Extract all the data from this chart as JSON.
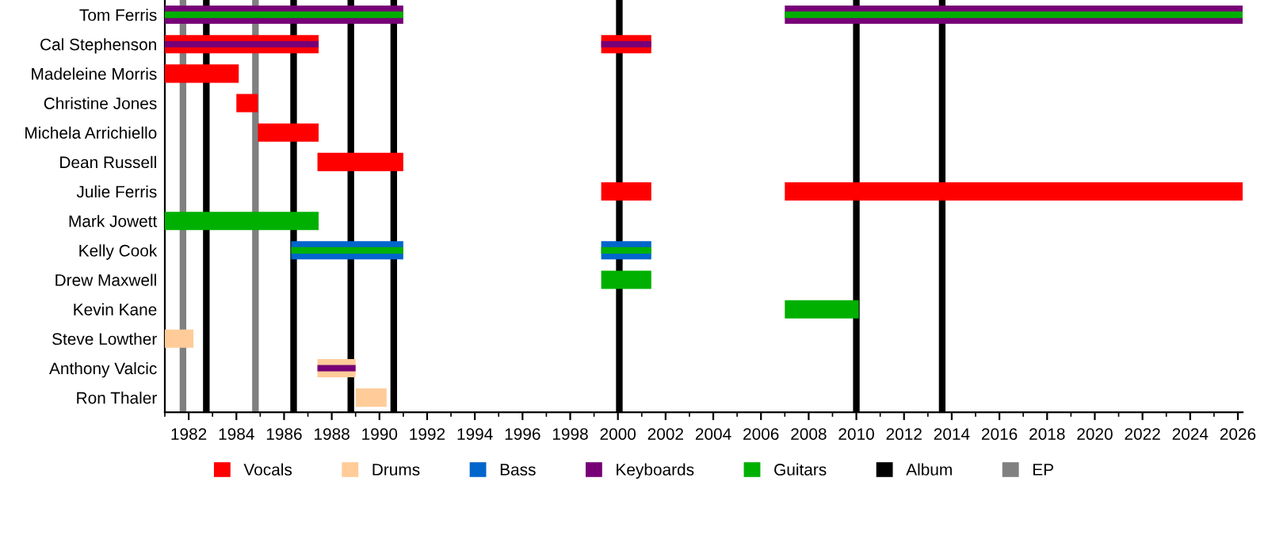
{
  "chart_data": {
    "type": "bar",
    "orientation": "horizontal",
    "categories": [
      "Tom Ferris",
      "Cal Stephenson",
      "Madeleine Morris",
      "Christine Jones",
      "Michela Arrichiello",
      "Dean Russell",
      "Julie Ferris",
      "Mark Jowett",
      "Kelly Cook",
      "Drew Maxwell",
      "Kevin Kane",
      "Steve Lowther",
      "Anthony Valcic",
      "Ron Thaler"
    ],
    "series": [
      {
        "name": "Vocals",
        "color": "#ff0000",
        "base": [
          null,
          1981,
          1981,
          1984.0,
          1984.9,
          1987.4,
          1999.3,
          null,
          null,
          null,
          null,
          null,
          null,
          null
        ],
        "values": [
          null,
          6.45,
          3.1,
          0.9,
          2.55,
          3.6,
          2.1,
          null,
          null,
          null,
          null,
          null,
          null,
          null
        ]
      },
      {
        "color": "#ff0000",
        "base": [
          null,
          1999.3,
          null,
          null,
          null,
          null,
          2007,
          null,
          null,
          null,
          null,
          null,
          null,
          null
        ],
        "values": [
          null,
          2.1,
          null,
          null,
          null,
          null,
          19.2,
          null,
          null,
          null,
          null,
          null,
          null,
          null
        ]
      },
      {
        "name": "Drums",
        "color": "#ffcc99",
        "base": [
          null,
          null,
          null,
          null,
          null,
          null,
          null,
          null,
          null,
          null,
          null,
          1981,
          1987.4,
          1989.0
        ],
        "values": [
          null,
          null,
          null,
          null,
          null,
          null,
          null,
          null,
          null,
          null,
          null,
          1.2,
          1.6,
          1.3
        ]
      },
      {
        "name": "Bass",
        "color": "#0066cc",
        "base": [
          null,
          null,
          null,
          null,
          null,
          null,
          null,
          null,
          1986.3,
          null,
          null,
          null,
          null,
          null
        ],
        "values": [
          null,
          null,
          null,
          null,
          null,
          null,
          null,
          null,
          4.7,
          null,
          null,
          null,
          null,
          null
        ]
      },
      {
        "color": "#0066cc",
        "base": [
          null,
          null,
          null,
          null,
          null,
          null,
          null,
          null,
          1999.3,
          null,
          null,
          null,
          null,
          null
        ],
        "values": [
          null,
          null,
          null,
          null,
          null,
          null,
          null,
          null,
          2.1,
          null,
          null,
          null,
          null,
          null
        ]
      },
      {
        "name": "Keyboards",
        "color": "#770077",
        "base": [
          1981,
          1981,
          null,
          null,
          null,
          null,
          null,
          null,
          null,
          null,
          null,
          null,
          1987.4,
          null
        ],
        "values": [
          10.0,
          6.45,
          null,
          null,
          null,
          null,
          null,
          null,
          null,
          null,
          null,
          null,
          1.6,
          null
        ]
      },
      {
        "color": "#770077",
        "base": [
          2007,
          1999.3,
          null,
          null,
          null,
          null,
          null,
          null,
          null,
          null,
          null,
          null,
          null,
          null
        ],
        "values": [
          19.2,
          2.1,
          null,
          null,
          null,
          null,
          null,
          null,
          null,
          null,
          null,
          null,
          null,
          null
        ]
      },
      {
        "name": "Guitars",
        "color": "#00b000",
        "base": [
          1981,
          null,
          null,
          null,
          null,
          null,
          null,
          1981,
          1986.3,
          1999.3,
          2007,
          null,
          null,
          null
        ],
        "values": [
          10.0,
          null,
          null,
          null,
          null,
          null,
          null,
          6.45,
          4.7,
          2.1,
          3.1,
          null,
          null,
          null
        ]
      },
      {
        "color": "#00b000",
        "base": [
          2007,
          null,
          null,
          null,
          null,
          null,
          null,
          null,
          1999.3,
          null,
          null,
          null,
          null,
          null
        ],
        "values": [
          19.2,
          null,
          null,
          null,
          null,
          null,
          null,
          null,
          2.1,
          null,
          null,
          null,
          null,
          null
        ]
      }
    ],
    "ref_lines": [
      {
        "axis": "x",
        "value": 1982.74,
        "label": "Album",
        "color": "#000000"
      },
      {
        "axis": "x",
        "value": 1986.4,
        "color": "#000000"
      },
      {
        "axis": "x",
        "value": 1988.8,
        "color": "#000000"
      },
      {
        "axis": "x",
        "value": 1990.6,
        "color": "#000000"
      },
      {
        "axis": "x",
        "value": 2000.06,
        "color": "#000000"
      },
      {
        "axis": "x",
        "value": 2010.0,
        "color": "#000000"
      },
      {
        "axis": "x",
        "value": 2013.6,
        "color": "#000000"
      },
      {
        "axis": "x",
        "value": 1981.76,
        "label": "EP",
        "color": "#808080"
      },
      {
        "axis": "x",
        "value": 1984.8,
        "color": "#808080"
      }
    ],
    "xlim": [
      1981,
      2026.2
    ],
    "xticks": [
      1982,
      1984,
      1986,
      1988,
      1990,
      1992,
      1994,
      1996,
      1998,
      2000,
      2002,
      2004,
      2006,
      2008,
      2010,
      2012,
      2014,
      2016,
      2018,
      2020,
      2022,
      2024,
      2026
    ],
    "grid": false,
    "legend": "bottom"
  }
}
